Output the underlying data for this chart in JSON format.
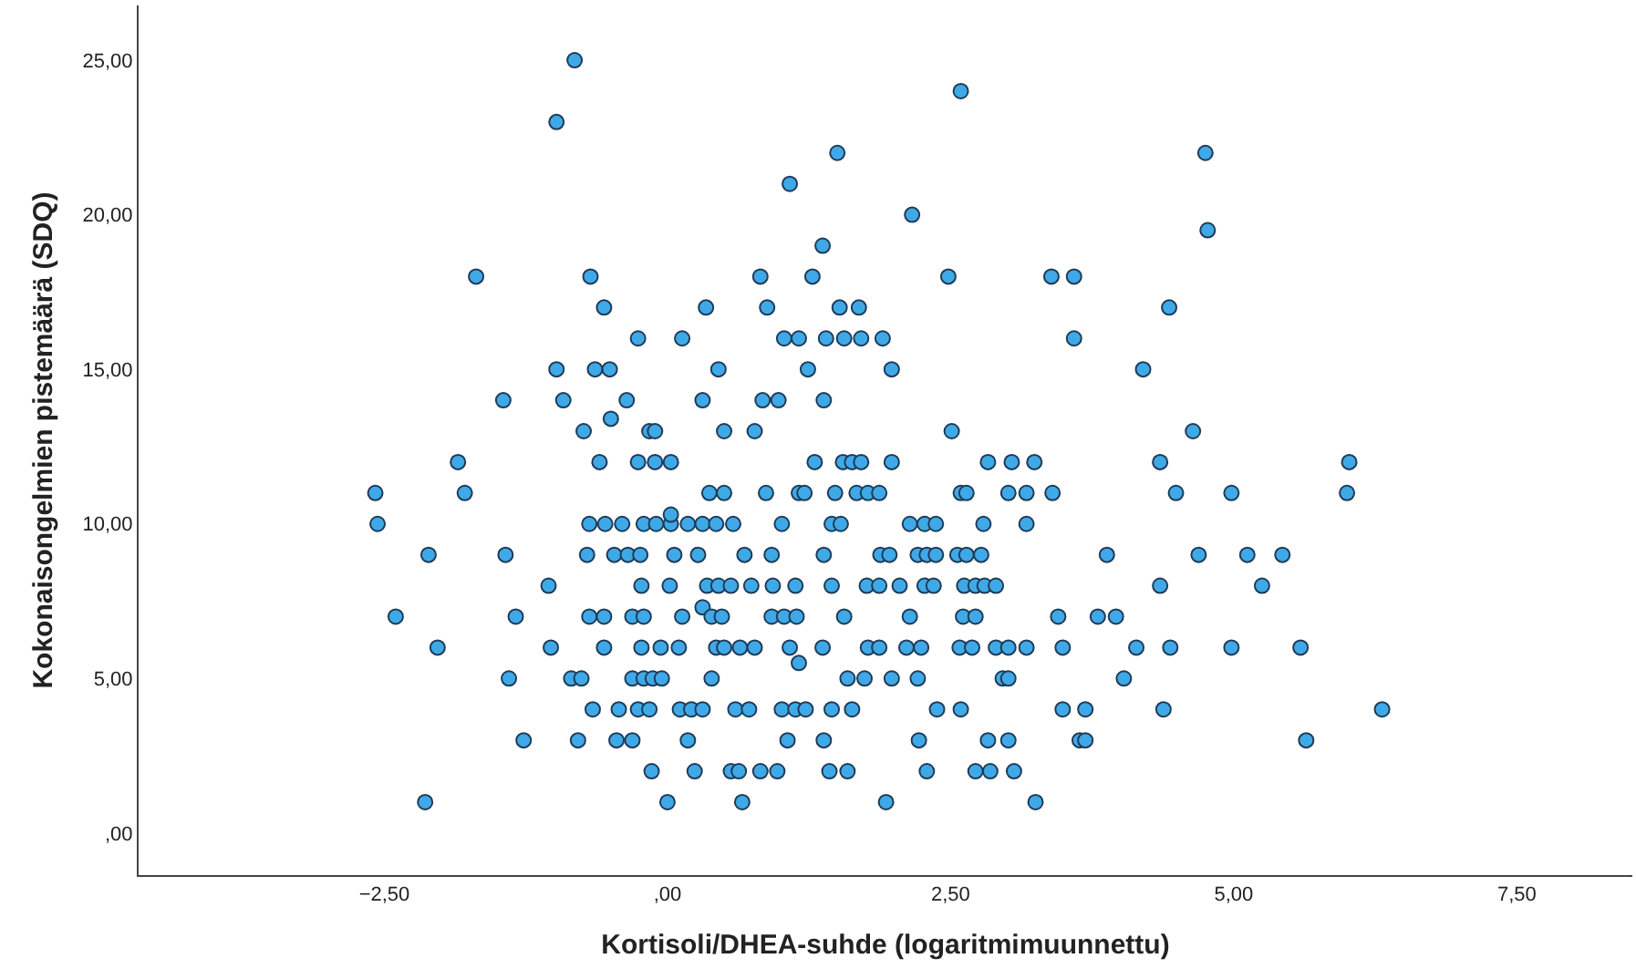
{
  "chart_data": {
    "type": "scatter",
    "xlabel": "Kortisoli/DHEA-suhde (logaritmimuunnettu)",
    "ylabel": "Kokonaisongelmien pistemäärä (SDQ)",
    "xlim": [
      -4.67,
      8.52
    ],
    "ylim": [
      -1.36,
      26.77
    ],
    "xticks": [
      {
        "value": -2.5,
        "label": "−2,50"
      },
      {
        "value": 0,
        "label": ",00"
      },
      {
        "value": 2.5,
        "label": "2,50"
      },
      {
        "value": 5,
        "label": "5,00"
      },
      {
        "value": 7.5,
        "label": "7,50"
      }
    ],
    "yticks": [
      {
        "value": 0,
        "label": ",00"
      },
      {
        "value": 5,
        "label": "5,00"
      },
      {
        "value": 10,
        "label": "10,00"
      },
      {
        "value": 15,
        "label": "15,00"
      },
      {
        "value": 20,
        "label": "20,00"
      },
      {
        "value": 25,
        "label": "25,00"
      }
    ],
    "grid": false,
    "marker": "circle",
    "series": [
      {
        "color": "#3fa9e8",
        "x": [
          -0.82,
          -0.98,
          1.08,
          -1.69,
          -0.68,
          0.82,
          -0.56,
          0.34,
          0.88,
          -0.26,
          0.13,
          1.03,
          1.16,
          -0.98,
          -0.64,
          -0.51,
          0.45,
          -1.45,
          -0.92,
          -0.36,
          0.31,
          0.84,
          0.98,
          -0.74,
          -0.5,
          -0.16,
          -0.11,
          0.5,
          0.77,
          -1.85,
          -0.6,
          -0.26,
          -0.11,
          0.03,
          -2.58,
          -1.79,
          0.37,
          0.5,
          0.87,
          1.16,
          -2.56,
          -0.69,
          -0.55,
          -0.4,
          -0.21,
          -0.1,
          0.03,
          0.18,
          0.31,
          0.43,
          0.58,
          0.03,
          1.01,
          -2.11,
          -1.43,
          -0.71,
          -0.47,
          -0.35,
          -0.24,
          0.06,
          0.27,
          0.68,
          0.92,
          -1.05,
          -0.23,
          0.02,
          0.35,
          0.45,
          0.56,
          0.74,
          0.93,
          1.13,
          -2.4,
          -1.34,
          -0.69,
          -0.56,
          -0.31,
          -0.21,
          0.13,
          0.31,
          0.39,
          0.48,
          0.92,
          1.03,
          1.14,
          -2.03,
          -1.03,
          -0.56,
          -0.23,
          -0.06,
          0.1,
          0.43,
          0.5,
          0.64,
          0.77,
          1.08,
          1.16,
          -1.4,
          -0.85,
          -0.76,
          -0.31,
          -0.21,
          -0.13,
          -0.05,
          0.39,
          -0.66,
          -0.43,
          -0.26,
          -0.16,
          0.11,
          0.21,
          0.31,
          0.6,
          0.72,
          1.01,
          1.13,
          -1.27,
          -0.79,
          -0.45,
          -0.31,
          0.18,
          1.06,
          -0.14,
          0.24,
          0.56,
          0.63,
          0.82,
          0.97,
          -2.14,
          0.0,
          0.66,
          2.59,
          1.5,
          2.16,
          1.37,
          1.28,
          2.48,
          3.39,
          3.59,
          1.52,
          1.69,
          1.4,
          1.56,
          1.71,
          1.9,
          3.59,
          1.24,
          1.98,
          1.38,
          2.51,
          1.3,
          1.55,
          1.63,
          1.71,
          1.98,
          2.83,
          3.04,
          3.24,
          1.21,
          1.48,
          1.67,
          1.77,
          1.87,
          2.59,
          2.64,
          3.01,
          3.17,
          3.4,
          1.45,
          1.53,
          2.14,
          2.27,
          2.37,
          2.79,
          3.17,
          1.38,
          1.88,
          1.96,
          2.21,
          2.29,
          2.37,
          2.56,
          2.64,
          2.77,
          1.45,
          1.76,
          1.87,
          2.05,
          2.27,
          2.35,
          2.62,
          2.72,
          2.8,
          2.9,
          1.56,
          2.14,
          2.61,
          2.72,
          3.45,
          1.37,
          1.77,
          1.87,
          2.11,
          2.24,
          2.58,
          2.69,
          2.9,
          3.01,
          3.17,
          3.49,
          1.59,
          1.74,
          1.98,
          2.21,
          2.96,
          3.01,
          1.22,
          1.45,
          1.63,
          2.38,
          2.59,
          3.49,
          3.69,
          1.38,
          2.22,
          2.83,
          3.01,
          3.64,
          3.69,
          1.43,
          1.59,
          2.29,
          2.72,
          2.85,
          3.06,
          1.93,
          3.25,
          4.75,
          4.77,
          4.43,
          4.2,
          4.64,
          4.35,
          6.02,
          4.49,
          4.98,
          6.0,
          3.88,
          4.69,
          5.12,
          5.43,
          4.35,
          5.25,
          3.8,
          3.96,
          4.14,
          4.44,
          4.98,
          5.59,
          4.03,
          4.38,
          6.31,
          5.64
        ],
        "values": [
          25,
          23,
          21,
          18,
          18,
          18,
          17,
          17,
          17,
          16,
          16,
          16,
          16,
          15,
          15,
          15,
          15,
          14,
          14,
          14,
          14,
          14,
          14,
          13,
          13.4,
          13,
          13,
          13,
          13,
          12,
          12,
          12,
          12,
          12,
          11,
          11,
          11,
          11,
          11,
          11,
          10,
          10,
          10,
          10,
          10,
          10,
          10,
          10,
          10,
          10,
          10,
          10.3,
          10,
          9,
          9,
          9,
          9,
          9,
          9,
          9,
          9,
          9,
          9,
          8,
          8,
          8,
          8,
          8,
          8,
          8,
          8,
          8,
          7,
          7,
          7,
          7,
          7,
          7,
          7,
          7.3,
          7,
          7,
          7,
          7,
          7,
          6,
          6,
          6,
          6,
          6,
          6,
          6,
          6,
          6,
          6,
          6,
          5.5,
          5,
          5,
          5,
          5,
          5,
          5,
          5,
          5,
          4,
          4,
          4,
          4,
          4,
          4,
          4,
          4,
          4,
          4,
          4,
          3,
          3,
          3,
          3,
          3,
          3,
          2,
          2,
          2,
          2,
          2,
          2,
          1,
          1,
          1,
          24,
          22,
          20,
          19,
          18,
          18,
          18,
          18,
          17,
          17,
          16,
          16,
          16,
          16,
          16,
          15,
          15,
          14,
          13,
          12,
          12,
          12,
          12,
          12,
          12,
          12,
          12,
          11,
          11,
          11,
          11,
          11,
          11,
          11,
          11,
          11,
          11,
          10,
          10,
          10,
          10,
          10,
          10,
          10,
          9,
          9,
          9,
          9,
          9,
          9,
          9,
          9,
          9,
          8,
          8,
          8,
          8,
          8,
          8,
          8,
          8,
          8,
          8,
          7,
          7,
          7,
          7,
          7,
          6,
          6,
          6,
          6,
          6,
          6,
          6,
          6,
          6,
          6,
          6,
          5,
          5,
          5,
          5,
          5,
          5,
          4,
          4,
          4,
          4,
          4,
          4,
          4,
          3,
          3,
          3,
          3,
          3,
          3,
          2,
          2,
          2,
          2,
          2,
          2,
          1,
          1,
          22,
          19.5,
          17,
          15,
          13,
          12,
          12,
          11,
          11,
          11,
          9,
          9,
          9,
          9,
          8,
          8,
          7,
          7,
          6,
          6,
          6,
          6,
          5,
          4,
          4,
          3
        ]
      }
    ]
  }
}
